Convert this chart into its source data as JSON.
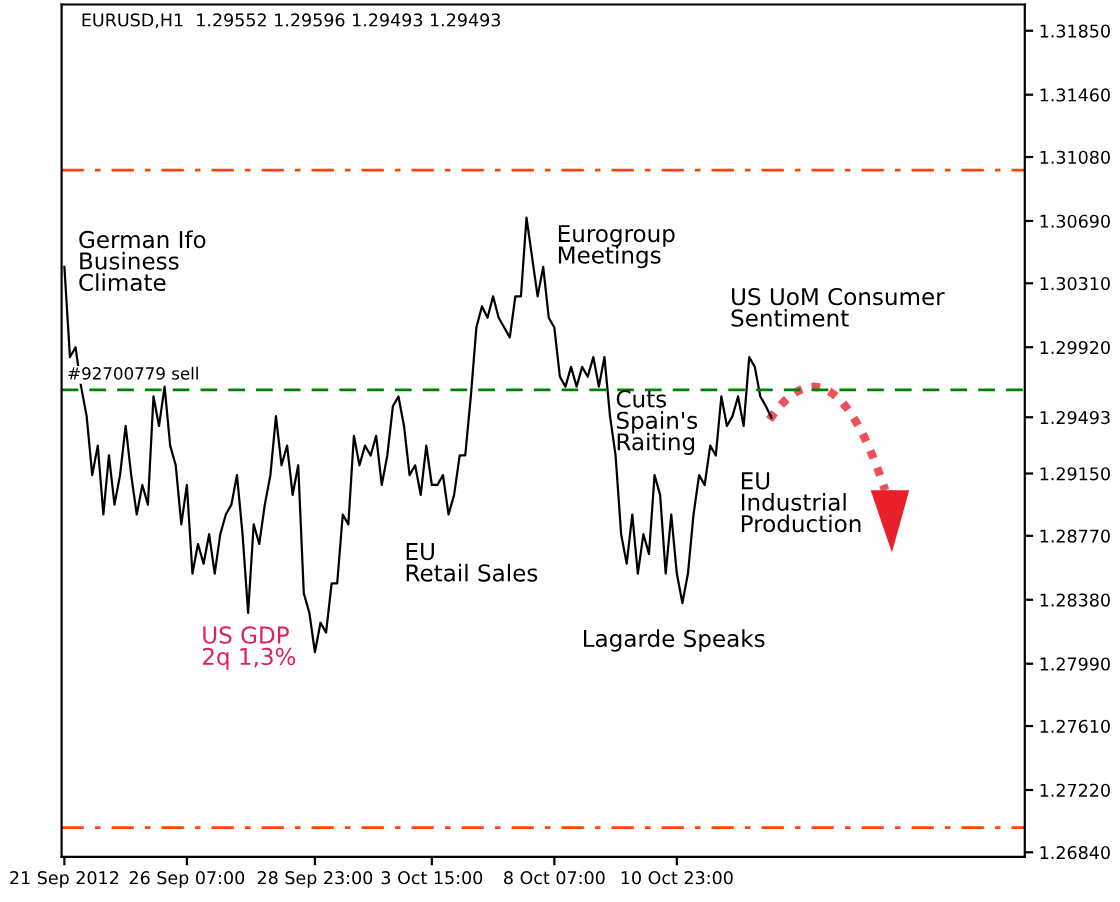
{
  "chart_data": {
    "type": "line",
    "title": "EURUSD,H1  1.29552 1.29596 1.29493 1.29493",
    "categories": [
      "21 Sep 2012",
      null,
      null,
      null,
      null,
      null,
      null,
      null,
      null,
      null,
      null,
      null,
      null,
      null,
      null,
      null,
      null,
      null,
      null,
      null,
      null,
      null,
      "26 Sep 07:00",
      null,
      null,
      null,
      null,
      null,
      null,
      null,
      null,
      null,
      null,
      null,
      null,
      null,
      null,
      null,
      null,
      null,
      null,
      null,
      null,
      null,
      null,
      "28 Sep 23:00",
      null,
      null,
      null,
      null,
      null,
      null,
      null,
      null,
      null,
      null,
      null,
      null,
      null,
      null,
      null,
      null,
      null,
      null,
      null,
      null,
      "3 Oct 15:00",
      null,
      null,
      null,
      null,
      null,
      null,
      null,
      null,
      null,
      null,
      null,
      null,
      null,
      null,
      null,
      null,
      null,
      null,
      null,
      null,
      null,
      "8 Oct 07:00",
      null,
      null,
      null,
      null,
      null,
      null,
      null,
      null,
      null,
      null,
      null,
      null,
      null,
      null,
      null,
      null,
      null,
      null,
      null,
      null,
      null,
      "10 Oct 23:00",
      null,
      null,
      null,
      null,
      null,
      null,
      null,
      null,
      null,
      null,
      null,
      null,
      null,
      null,
      null,
      null,
      null,
      null,
      null,
      null,
      null,
      null,
      null,
      null,
      null,
      null,
      null,
      null,
      null,
      null,
      null,
      null,
      null,
      null,
      null,
      null,
      null,
      null,
      null,
      null,
      null,
      null,
      null,
      null,
      null,
      null,
      null,
      null,
      null,
      null,
      null,
      null,
      null,
      null,
      null,
      null,
      null,
      null,
      null,
      null,
      null,
      null
    ],
    "series": [
      {
        "color": "#000000",
        "values": [
          1.3041,
          1.2986,
          1.2992,
          1.2968,
          1.295,
          1.2914,
          1.2932,
          1.289,
          1.2926,
          1.2896,
          1.2914,
          1.2944,
          1.2914,
          1.289,
          1.2908,
          1.2896,
          1.2962,
          1.2944,
          1.2968,
          1.2932,
          1.292,
          1.2884,
          1.2908,
          1.2854,
          1.2872,
          1.286,
          1.2878,
          1.2854,
          1.2878,
          1.289,
          1.2896,
          1.2914,
          1.2878,
          1.283,
          1.2884,
          1.2872,
          1.2896,
          1.2914,
          1.295,
          1.292,
          1.2932,
          1.2902,
          1.292,
          1.2842,
          1.283,
          1.2806,
          1.2824,
          1.2818,
          1.2848,
          1.2848,
          1.289,
          1.2884,
          1.2938,
          1.292,
          1.2932,
          1.2926,
          1.2938,
          1.2908,
          1.2926,
          1.2956,
          1.2962,
          1.2944,
          1.2914,
          1.292,
          1.2902,
          1.2932,
          1.2908,
          1.2908,
          1.2914,
          1.289,
          1.2902,
          1.2926,
          1.2926,
          1.2962,
          1.3004,
          1.3017,
          1.301,
          1.3023,
          1.301,
          1.3004,
          1.2998,
          1.3023,
          1.3023,
          1.3071,
          1.3047,
          1.3023,
          1.3041,
          1.301,
          1.3004,
          1.2974,
          1.2968,
          1.298,
          1.2968,
          1.298,
          1.2974,
          1.2986,
          1.2968,
          1.2986,
          1.295,
          1.2926,
          1.2878,
          1.286,
          1.289,
          1.2854,
          1.2878,
          1.2866,
          1.2914,
          1.2902,
          1.2854,
          1.289,
          1.2854,
          1.2836,
          1.2854,
          1.289,
          1.2914,
          1.2908,
          1.2932,
          1.2926,
          1.2962,
          1.2944,
          1.295,
          1.2962,
          1.2944,
          1.2986,
          1.298,
          1.2962,
          1.2956,
          1.2949,
          null,
          null,
          null,
          null,
          null,
          null,
          null,
          null,
          null,
          null,
          null,
          null,
          null,
          null,
          null,
          null,
          null,
          null,
          null,
          null,
          null,
          null,
          null,
          null,
          null,
          null,
          null,
          null,
          null,
          null,
          null,
          null,
          null,
          null,
          null,
          null,
          null,
          null,
          null,
          null,
          null,
          null,
          null,
          null,
          null
        ]
      }
    ],
    "ylim": [
      1.26812,
      1.3201
    ],
    "yticks": [
      {
        "value": 1.2684,
        "label": "1.26840"
      },
      {
        "value": 1.2722,
        "label": "1.27220"
      },
      {
        "value": 1.2761,
        "label": "1.27610"
      },
      {
        "value": 1.2799,
        "label": "1.27990"
      },
      {
        "value": 1.2838,
        "label": "1.28380"
      },
      {
        "value": 1.2877,
        "label": "1.28770"
      },
      {
        "value": 1.2915,
        "label": "1.29150"
      },
      {
        "value": 1.29493,
        "label": "1.29493"
      },
      {
        "value": 1.2992,
        "label": "1.29920"
      },
      {
        "value": 1.3031,
        "label": "1.30310"
      },
      {
        "value": 1.3069,
        "label": "1.30690"
      },
      {
        "value": 1.3108,
        "label": "1.31080"
      },
      {
        "value": 1.3146,
        "label": "1.31460"
      },
      {
        "value": 1.3185,
        "label": "1.31850"
      }
    ],
    "ref_lines": [
      {
        "axis": "y",
        "value": 1.31,
        "color": "#ff4500",
        "line_style": "dashdot"
      },
      {
        "axis": "y",
        "value": 1.2699,
        "color": "#ff4500",
        "line_style": "dashdot"
      },
      {
        "axis": "y",
        "value": 1.2966,
        "color": "#008000",
        "line_style": "dashed",
        "label": "#92700779 sell"
      }
    ],
    "annotations": [
      "German Ifo\nBusiness\nClimate",
      "US GDP\n2q 1,3%",
      "EU\nRetail Sales",
      "Eurogroup\nMeetings",
      "Cuts\nSpain's\nRaiting",
      "Lagarde Speaks",
      "US UoM Consumer\nSentiment",
      "EU\nIndustrial\nProduction"
    ]
  }
}
